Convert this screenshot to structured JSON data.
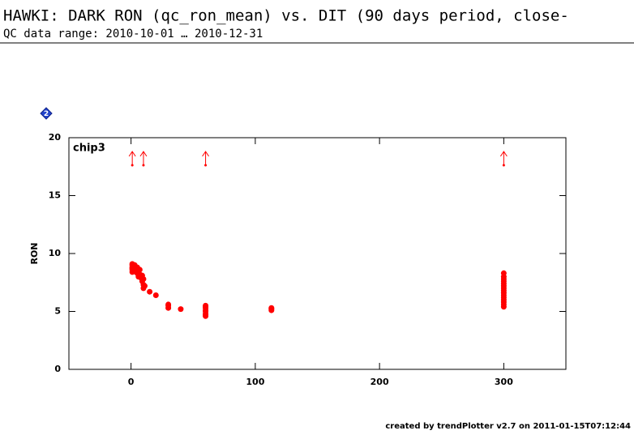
{
  "chart_data": {
    "type": "scatter",
    "title": "HAWKI: DARK RON (qc_ron_mean) vs. DIT (90 days period, close-",
    "subtitle": "QC data range: 2010-10-01 … 2010-12-31",
    "badge": "2",
    "panel_label": "chip3",
    "y_label": "RON",
    "footer": "created by trendPlotter v2.7 on 2011-01-15T07:12:44",
    "xlim": [
      -50,
      350
    ],
    "xticks": [
      0,
      100,
      200,
      300
    ],
    "ylim": [
      0,
      20
    ],
    "yticks": [
      0,
      5,
      10,
      15,
      20
    ],
    "color": "#ff0000",
    "x": [
      1,
      1,
      1,
      1,
      1,
      1,
      2,
      2,
      2,
      3,
      3,
      4,
      5,
      5,
      6,
      7,
      7,
      8,
      9,
      9,
      10,
      10,
      10,
      11,
      15,
      20,
      30,
      30,
      30,
      40,
      60,
      60,
      60,
      60,
      60,
      60,
      60,
      60,
      113,
      113,
      113,
      300,
      300,
      300,
      300,
      300,
      300,
      300,
      300,
      300,
      300,
      300,
      300,
      300,
      300,
      300
    ],
    "y": [
      8.4,
      8.6,
      8.8,
      9.0,
      9.1,
      8.7,
      8.5,
      8.9,
      9.0,
      8.6,
      9.0,
      8.4,
      8.3,
      8.8,
      8.0,
      8.2,
      8.6,
      7.9,
      7.6,
      8.1,
      7.0,
      7.3,
      7.8,
      7.2,
      6.7,
      6.4,
      5.3,
      5.5,
      5.6,
      5.2,
      4.6,
      4.7,
      4.8,
      5.0,
      5.1,
      5.3,
      5.4,
      5.5,
      5.1,
      5.2,
      5.3,
      5.4,
      5.6,
      5.8,
      6.0,
      6.2,
      6.4,
      6.6,
      6.8,
      7.0,
      7.2,
      7.4,
      7.6,
      7.8,
      8.0,
      8.3
    ],
    "upper_outliers_x": [
      1,
      10,
      60,
      300
    ]
  }
}
